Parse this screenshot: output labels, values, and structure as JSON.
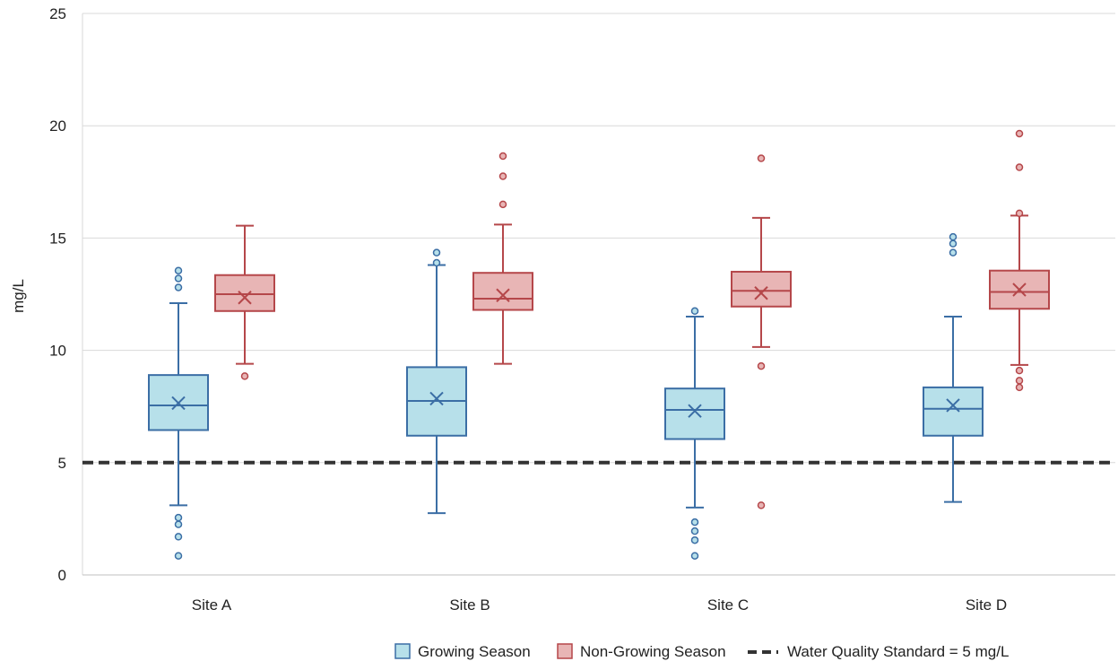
{
  "chart_data": {
    "type": "box",
    "ylabel": "mg/L",
    "xlabel": "",
    "ylim": [
      0,
      25
    ],
    "yticks": [
      0,
      5,
      10,
      15,
      20,
      25
    ],
    "grid": true,
    "legend_position": "bottom-right",
    "categories": [
      "Site A",
      "Site B",
      "Site C",
      "Site D"
    ],
    "series": [
      {
        "name": "Growing Season",
        "fill": "#b7e0ea",
        "stroke": "#3b6ea5",
        "boxes": [
          {
            "whisker_low": 3.1,
            "q1": 6.45,
            "median": 7.55,
            "q3": 8.9,
            "whisker_high": 12.1,
            "mean": 7.65,
            "outliers": [
              0.85,
              1.7,
              2.25,
              2.55,
              12.8,
              13.2,
              13.55
            ]
          },
          {
            "whisker_low": 2.75,
            "q1": 6.2,
            "median": 7.75,
            "q3": 9.25,
            "whisker_high": 13.8,
            "mean": 7.85,
            "outliers": [
              13.9,
              14.35
            ]
          },
          {
            "whisker_low": 3.0,
            "q1": 6.05,
            "median": 7.35,
            "q3": 8.3,
            "whisker_high": 11.5,
            "mean": 7.3,
            "outliers": [
              0.85,
              1.55,
              1.95,
              2.35,
              11.75
            ]
          },
          {
            "whisker_low": 3.25,
            "q1": 6.2,
            "median": 7.4,
            "q3": 8.35,
            "whisker_high": 11.5,
            "mean": 7.55,
            "outliers": [
              14.35,
              14.75,
              15.05
            ]
          }
        ]
      },
      {
        "name": "Non-Growing Season",
        "fill": "#e8b5b5",
        "stroke": "#b5474a",
        "boxes": [
          {
            "whisker_low": 9.4,
            "q1": 11.75,
            "median": 12.5,
            "q3": 13.35,
            "whisker_high": 15.55,
            "mean": 12.35,
            "outliers": [
              8.85
            ]
          },
          {
            "whisker_low": 9.4,
            "q1": 11.8,
            "median": 12.3,
            "q3": 13.45,
            "whisker_high": 15.6,
            "mean": 12.45,
            "outliers": [
              16.5,
              17.75,
              18.65
            ]
          },
          {
            "whisker_low": 10.15,
            "q1": 11.95,
            "median": 12.65,
            "q3": 13.5,
            "whisker_high": 15.9,
            "mean": 12.55,
            "outliers": [
              3.1,
              9.3,
              18.55
            ]
          },
          {
            "whisker_low": 9.35,
            "q1": 11.85,
            "median": 12.6,
            "q3": 13.55,
            "whisker_high": 16.0,
            "mean": 12.7,
            "outliers": [
              8.35,
              8.65,
              9.1,
              16.1,
              18.15,
              19.65
            ]
          }
        ]
      }
    ],
    "reference_line": {
      "label": "Water Quality Standard = 5 mg/L",
      "value": 5,
      "color": "#333333"
    }
  }
}
